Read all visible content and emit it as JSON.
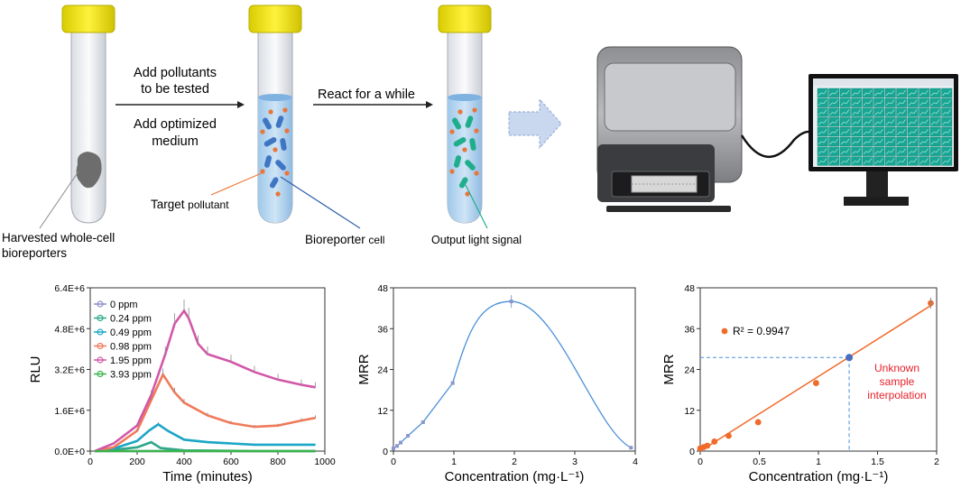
{
  "top": {
    "step1_line1": "Add pollutants",
    "step1_line2": "to be tested",
    "step1_line3": "Add optimized",
    "step1_line4": "medium",
    "step2": "React for a while",
    "harvest_line1": "Harvested whole-cell",
    "harvest_line2": "bioreporters",
    "target_a": "Target",
    "target_b": "pollutant",
    "bio_a": "Bioreporter",
    "bio_b": "cell",
    "output": "Output light signal"
  },
  "colors": {
    "cap": "#f2e600",
    "liquid": "#8fc2e8",
    "cell_blue": "#3f76c4",
    "cell_green": "#1fae8c",
    "pollutant": "#e8763a",
    "arrow_fill": "#c9d8ef",
    "plate": "#17a693",
    "line_orange": "#f06a2a",
    "line_blue": "#4a90d9",
    "red_text": "#e8212b"
  },
  "chart_data": [
    {
      "type": "line",
      "xlabel": "Time (minutes)",
      "ylabel": "RLU",
      "xlim": [
        0,
        1000
      ],
      "ylim": [
        0,
        6400000
      ],
      "xticks": [
        "0",
        "200",
        "400",
        "600",
        "800",
        "1000"
      ],
      "yticks": [
        "0.0E+0",
        "1.6E+6",
        "3.2E+6",
        "4.8E+6",
        "6.4E+6"
      ],
      "legend_position": "top-left",
      "series": [
        {
          "name": "0 ppm",
          "color": "#8e8ec8",
          "x": [
            20,
            100,
            200,
            300,
            400,
            500,
            600,
            700,
            800,
            900,
            960
          ],
          "y": [
            0,
            0,
            0,
            0,
            0,
            0,
            0,
            0,
            0,
            0,
            0
          ]
        },
        {
          "name": "0.24 ppm",
          "color": "#2ea88a",
          "x": [
            20,
            100,
            200,
            260,
            300,
            400,
            500,
            600,
            700,
            800,
            900,
            960
          ],
          "y": [
            0,
            50000,
            150000,
            350000,
            120000,
            30000,
            20000,
            10000,
            0,
            0,
            0,
            0
          ]
        },
        {
          "name": "0.49 ppm",
          "color": "#1aa6c6",
          "x": [
            20,
            100,
            200,
            250,
            290,
            330,
            400,
            500,
            600,
            700,
            800,
            900,
            960
          ],
          "y": [
            0,
            100000,
            400000,
            800000,
            1050000,
            800000,
            450000,
            350000,
            300000,
            250000,
            250000,
            250000,
            250000
          ]
        },
        {
          "name": "0.98 ppm",
          "color": "#f07a5a",
          "x": [
            20,
            100,
            200,
            260,
            310,
            360,
            400,
            500,
            600,
            700,
            800,
            900,
            960
          ],
          "y": [
            0,
            150000,
            800000,
            2000000,
            3000000,
            2300000,
            1900000,
            1400000,
            1100000,
            950000,
            1000000,
            1200000,
            1300000
          ]
        },
        {
          "name": "1.95 ppm",
          "color": "#d257a8",
          "x": [
            20,
            100,
            200,
            260,
            320,
            360,
            400,
            420,
            460,
            500,
            600,
            700,
            800,
            900,
            960
          ],
          "y": [
            0,
            300000,
            1000000,
            2200000,
            3800000,
            5000000,
            5500000,
            5200000,
            4200000,
            3800000,
            3500000,
            3100000,
            2800000,
            2600000,
            2500000
          ]
        },
        {
          "name": "3.93 ppm",
          "color": "#3cb44b",
          "x": [
            20,
            100,
            200,
            300,
            400,
            500,
            600,
            700,
            800,
            900,
            960
          ],
          "y": [
            0,
            0,
            0,
            0,
            0,
            0,
            0,
            0,
            0,
            0,
            0
          ]
        }
      ]
    },
    {
      "type": "line",
      "xlabel": "Concentration (mg·L⁻¹)",
      "ylabel": "MRR",
      "xlim": [
        0,
        4
      ],
      "ylim": [
        0,
        48
      ],
      "xticks": [
        "0",
        "1",
        "2",
        "3",
        "4"
      ],
      "yticks": [
        "0",
        "12",
        "24",
        "36",
        "48"
      ],
      "series": [
        {
          "x": [
            0,
            0.06,
            0.12,
            0.24,
            0.49,
            0.98,
            1.95,
            3.93
          ],
          "y": [
            0.8,
            1.5,
            2.5,
            4.5,
            8.5,
            20,
            44,
            1
          ]
        }
      ]
    },
    {
      "type": "scatter",
      "xlabel": "Concentration (mg·L⁻¹)",
      "ylabel": "MRR",
      "xlim": [
        0,
        2
      ],
      "ylim": [
        0,
        48
      ],
      "xticks": [
        "0",
        "0.5",
        "1",
        "1.5",
        "2"
      ],
      "yticks": [
        "0",
        "12",
        "24",
        "36",
        "48"
      ],
      "points": {
        "x": [
          0,
          0.03,
          0.06,
          0.12,
          0.24,
          0.49,
          0.98,
          1.95
        ],
        "y": [
          0.8,
          1.2,
          1.6,
          2.8,
          4.5,
          8.5,
          20,
          43.5
        ]
      },
      "fit_line": {
        "x": [
          0,
          1.96
        ],
        "y": [
          0,
          43
        ]
      },
      "unknown_sample": {
        "x": 1.26,
        "y": 27.5
      },
      "annotation": "R² = 0.9947",
      "callout": [
        "Unknown",
        "sample",
        "interpolation"
      ]
    }
  ]
}
